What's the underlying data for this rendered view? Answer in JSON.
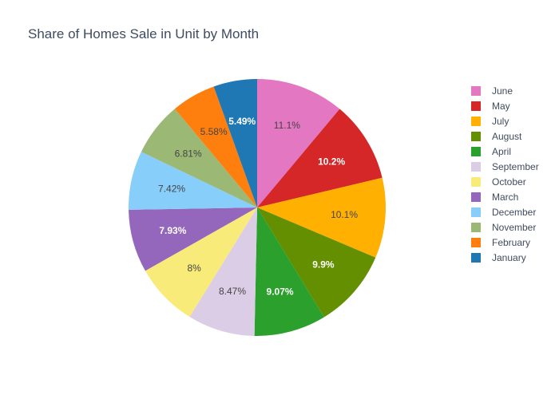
{
  "chart_data": {
    "type": "pie",
    "title": "Share of Homes Sale in Unit by Month",
    "slices": [
      {
        "label": "June",
        "value": 11.1,
        "display": "11.1%",
        "color": "#e377c2",
        "text_color": "#444444"
      },
      {
        "label": "May",
        "value": 10.2,
        "display": "10.2%",
        "color": "#d62728",
        "text_color": "#ffffff"
      },
      {
        "label": "July",
        "value": 10.1,
        "display": "10.1%",
        "color": "#ffb000",
        "text_color": "#444444"
      },
      {
        "label": "August",
        "value": 9.9,
        "display": "9.9%",
        "color": "#638f00",
        "text_color": "#ffffff"
      },
      {
        "label": "April",
        "value": 9.07,
        "display": "9.07%",
        "color": "#2ca02c",
        "text_color": "#ffffff"
      },
      {
        "label": "September",
        "value": 8.47,
        "display": "8.47%",
        "color": "#dbcde6",
        "text_color": "#444444"
      },
      {
        "label": "October",
        "value": 8.0,
        "display": "8%",
        "color": "#f9eb79",
        "text_color": "#444444"
      },
      {
        "label": "March",
        "value": 7.93,
        "display": "7.93%",
        "color": "#9467bd",
        "text_color": "#ffffff"
      },
      {
        "label": "December",
        "value": 7.42,
        "display": "7.42%",
        "color": "#87cefa",
        "text_color": "#444444"
      },
      {
        "label": "November",
        "value": 6.81,
        "display": "6.81%",
        "color": "#9bb874",
        "text_color": "#444444"
      },
      {
        "label": "February",
        "value": 5.58,
        "display": "5.58%",
        "color": "#ff7f0e",
        "text_color": "#444444"
      },
      {
        "label": "January",
        "value": 5.49,
        "display": "5.49%",
        "color": "#1f77b4",
        "text_color": "#ffffff"
      }
    ],
    "legend_position": "right"
  }
}
